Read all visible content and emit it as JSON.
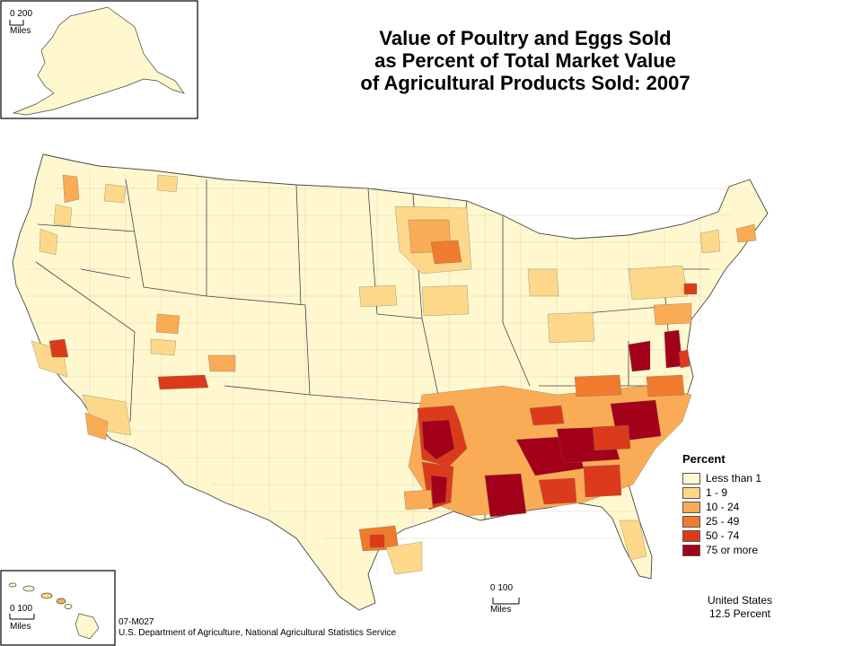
{
  "title_lines": [
    "Value of Poultry and Eggs Sold",
    "as Percent of Total Market Value",
    "of Agricultural Products Sold:  2007"
  ],
  "legend": {
    "title": "Percent",
    "items": [
      {
        "label": "Less than 1",
        "color": "#fff8cf"
      },
      {
        "label": "1 - 9",
        "color": "#fdd88a"
      },
      {
        "label": "10 - 24",
        "color": "#f9ab55"
      },
      {
        "label": "25 - 49",
        "color": "#f07b2e"
      },
      {
        "label": "50 - 74",
        "color": "#dc3b1b"
      },
      {
        "label": "75 or more",
        "color": "#a3001a"
      }
    ]
  },
  "scales": {
    "alaska": {
      "values": "0  200",
      "unit": "Miles"
    },
    "hawaii": {
      "values": "0  100",
      "unit": "Miles"
    },
    "main": {
      "values": "0  100",
      "unit": "Miles"
    }
  },
  "us_note": {
    "line1": "United States",
    "line2": "12.5 Percent"
  },
  "footer": {
    "code": "07-M027",
    "source": "U.S. Department of Agriculture, National Agricultural Statistics Service"
  },
  "colors": {
    "border": "#444444",
    "inset_frame": "#000000"
  }
}
